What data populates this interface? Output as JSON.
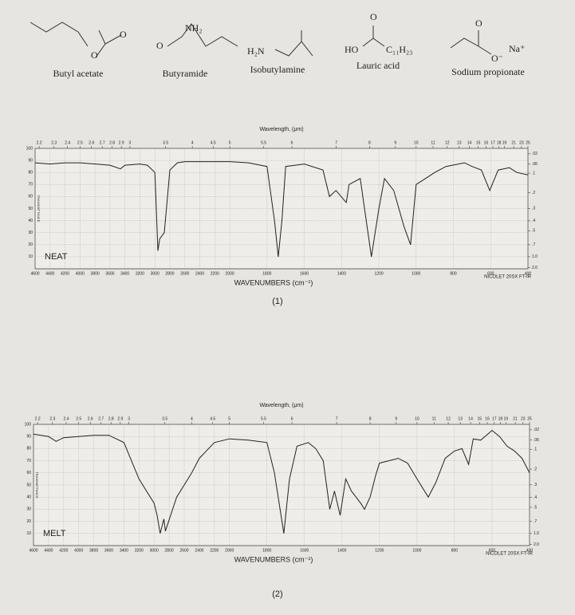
{
  "molecules": [
    {
      "name": "Butyl acetate",
      "atoms": [
        "O",
        "O"
      ]
    },
    {
      "name": "Butyramide",
      "atoms": [
        "NH₂",
        "O"
      ]
    },
    {
      "name": "Isobutylamine",
      "atoms": [
        "H₂N"
      ]
    },
    {
      "name": "Lauric acid",
      "atoms": [
        "O",
        "HO",
        "C₁₁H₂₃"
      ]
    },
    {
      "name": "Sodium propionate",
      "atoms": [
        "O",
        "O⁻",
        "Na⁺"
      ]
    }
  ],
  "chart_data": [
    {
      "type": "line",
      "x2_label": "Wavelength, (μm)",
      "x_label": "WAVENUMBERS (cm⁻¹)",
      "y_label": "TRANSMITTANCE",
      "sample": "NEAT",
      "instrument": "NICOLET 20SX FT-IR",
      "caption": "(1)",
      "color": "#222",
      "grid": true,
      "xlim": [
        4600,
        400
      ],
      "x_scale_break": 2000,
      "xticks": [
        4600,
        4400,
        4200,
        4000,
        3800,
        3600,
        3400,
        3200,
        3000,
        2800,
        2600,
        2400,
        2200,
        2000,
        1800,
        1600,
        1400,
        1200,
        1000,
        800,
        600,
        400
      ],
      "x2ticks": [
        2.2,
        2.3,
        2.4,
        2.5,
        2.6,
        2.7,
        2.8,
        2.9,
        3,
        3.5,
        4,
        4.5,
        5,
        5.5,
        6,
        7,
        8,
        9,
        10,
        11,
        12,
        13,
        14,
        15,
        16,
        17,
        18,
        19,
        21,
        23,
        25
      ],
      "ylim": [
        0,
        100
      ],
      "yticks": [
        10,
        20,
        30,
        40,
        50,
        60,
        70,
        80,
        90,
        100
      ],
      "y2ticks": [
        {
          "value": 0.02,
          "label": ".02"
        },
        {
          "value": 0.06,
          "label": ".06"
        },
        {
          "value": 0.1,
          "label": ".1"
        },
        {
          "value": 0.2,
          "label": ".2"
        },
        {
          "value": 0.3,
          "label": ".3"
        },
        {
          "value": 0.4,
          "label": ".4"
        },
        {
          "value": 0.5,
          "label": ".5"
        },
        {
          "value": 0.7,
          "label": ".7"
        },
        {
          "value": 1,
          "label": "1.0"
        },
        {
          "value": 2,
          "label": "2.0"
        }
      ],
      "x": [
        4600,
        4400,
        4200,
        4000,
        3800,
        3600,
        3460,
        3400,
        3200,
        3100,
        3000,
        2960,
        2935,
        2875,
        2800,
        2700,
        2600,
        2400,
        2200,
        2000,
        1900,
        1800,
        1760,
        1740,
        1720,
        1700,
        1600,
        1500,
        1465,
        1430,
        1375,
        1360,
        1300,
        1240,
        1200,
        1170,
        1120,
        1065,
        1030,
        1000,
        950,
        900,
        840,
        740,
        700,
        650,
        605,
        560,
        500,
        460,
        400
      ],
      "values": [
        88,
        87,
        88,
        88,
        87,
        86,
        83,
        86,
        87,
        86,
        80,
        15,
        25,
        30,
        82,
        88,
        89,
        89,
        89,
        89,
        88,
        85,
        40,
        10,
        40,
        85,
        87,
        82,
        60,
        65,
        55,
        70,
        75,
        10,
        50,
        75,
        65,
        35,
        20,
        70,
        75,
        80,
        85,
        88,
        85,
        82,
        65,
        82,
        84,
        80,
        78
      ]
    },
    {
      "type": "line",
      "x2_label": "Wavelength, (μm)",
      "x_label": "WAVENUMBERS (cm⁻¹)",
      "y_label": "TRANSMITTANCE",
      "sample": "MELT",
      "instrument": "NICOLET 20SX FT-IR",
      "caption": "(2)",
      "color": "#222",
      "grid": true,
      "xlim": [
        4600,
        400
      ],
      "x_scale_break": 2000,
      "xticks": [
        4600,
        4400,
        4200,
        4000,
        3800,
        3600,
        3400,
        3200,
        3000,
        2800,
        2600,
        2400,
        2200,
        2000,
        1800,
        1600,
        1400,
        1200,
        1000,
        800,
        600,
        400
      ],
      "x2ticks": [
        2.2,
        2.3,
        2.4,
        2.5,
        2.6,
        2.7,
        2.8,
        2.9,
        3,
        3.5,
        4,
        4.5,
        5,
        5.5,
        6,
        7,
        8,
        9,
        10,
        11,
        12,
        13,
        14,
        15,
        16,
        17,
        18,
        19,
        21,
        23,
        25
      ],
      "ylim": [
        0,
        100
      ],
      "yticks": [
        10,
        20,
        30,
        40,
        50,
        60,
        70,
        80,
        90,
        100
      ],
      "y2ticks": [
        {
          "value": 0.02,
          "label": ".02"
        },
        {
          "value": 0.06,
          "label": ".06"
        },
        {
          "value": 0.1,
          "label": ".1"
        },
        {
          "value": 0.2,
          "label": ".2"
        },
        {
          "value": 0.3,
          "label": ".3"
        },
        {
          "value": 0.4,
          "label": ".4"
        },
        {
          "value": 0.5,
          "label": ".5"
        },
        {
          "value": 0.7,
          "label": ".7"
        },
        {
          "value": 1,
          "label": "1.0"
        },
        {
          "value": 2,
          "label": "2.0"
        }
      ],
      "x": [
        4600,
        4400,
        4300,
        4200,
        4000,
        3800,
        3600,
        3400,
        3300,
        3200,
        3100,
        3000,
        2960,
        2920,
        2870,
        2850,
        2700,
        2600,
        2500,
        2400,
        2200,
        2000,
        1900,
        1800,
        1760,
        1710,
        1680,
        1640,
        1580,
        1540,
        1500,
        1465,
        1440,
        1410,
        1380,
        1350,
        1300,
        1280,
        1250,
        1220,
        1200,
        1150,
        1100,
        1050,
        1000,
        940,
        900,
        850,
        800,
        760,
        725,
        700,
        660,
        600,
        560,
        520,
        480,
        440,
        400
      ],
      "values": [
        92,
        90,
        86,
        89,
        90,
        91,
        91,
        85,
        70,
        55,
        45,
        35,
        25,
        10,
        22,
        12,
        40,
        50,
        60,
        72,
        85,
        88,
        87,
        85,
        60,
        10,
        55,
        82,
        85,
        80,
        70,
        30,
        45,
        25,
        55,
        45,
        35,
        30,
        40,
        58,
        68,
        70,
        72,
        68,
        55,
        40,
        52,
        72,
        78,
        80,
        67,
        88,
        87,
        95,
        90,
        82,
        78,
        72,
        60
      ]
    }
  ]
}
